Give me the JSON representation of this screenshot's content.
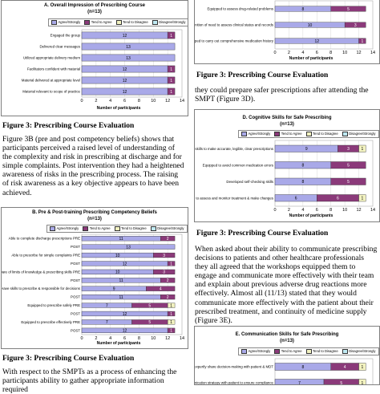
{
  "legend": {
    "labels": [
      "Agree/Strongly",
      "Tend to Agree",
      "Tend to Disagree",
      "Disagree/Strongly"
    ],
    "colors": [
      "#a9a9e8",
      "#8b3a7a",
      "#f2f2c0",
      "#bfe9f2"
    ]
  },
  "x_axis_title": "Number of participants",
  "chart_a": {
    "title": "A.  Overall Impression of Prescribing Course",
    "subtitle": "(n=13)",
    "rows": [
      {
        "label": "Engaged the group",
        "values": [
          12,
          1
        ]
      },
      {
        "label": "Delivered clear messages",
        "values": [
          13,
          0
        ]
      },
      {
        "label": "Utilized appropriate delivery medium",
        "values": [
          13,
          0
        ]
      },
      {
        "label": "Facilitators confident with material",
        "values": [
          12,
          1
        ]
      },
      {
        "label": "Material delivered at appropriate level",
        "values": [
          12,
          1
        ]
      },
      {
        "label": "Material relevant to scope of practice",
        "values": [
          12,
          1
        ]
      }
    ],
    "ticks": [
      0,
      2,
      4,
      6,
      8,
      10,
      12,
      14
    ]
  },
  "chart_b": {
    "title": "B.  Pre & Post-training Prescribing Competency Beliefs",
    "subtitle": "(n=13)",
    "rows": [
      {
        "label": "Able to complete discharge prescriptions  PRE",
        "values": [
          11,
          2
        ]
      },
      {
        "label": "POST",
        "values": [
          13,
          0
        ]
      },
      {
        "label": "Able to prescribe for simple complaints  PRE",
        "values": [
          10,
          3
        ]
      },
      {
        "label": "POST",
        "values": [
          12,
          1
        ]
      },
      {
        "label": "Aware of limits of knowledge & prescribing skills PRE",
        "values": [
          10,
          3
        ]
      },
      {
        "label": "POST",
        "values": [
          11,
          2
        ]
      },
      {
        "label": "Have skills to prescribe & responsible for decisions",
        "values": [
          9,
          4
        ]
      },
      {
        "label": "POST",
        "values": [
          11,
          2
        ]
      },
      {
        "label": "Equipped to prescribe safely  PRE",
        "values": [
          7,
          5,
          1
        ]
      },
      {
        "label": "POST",
        "values": [
          12,
          1
        ]
      },
      {
        "label": "Equipped to prescribe effectively  PRE",
        "values": [
          7,
          5,
          1
        ]
      },
      {
        "label": "POST",
        "values": [
          12,
          1
        ]
      }
    ],
    "ticks": [
      0,
      2,
      4,
      6,
      8,
      10,
      12,
      14
    ]
  },
  "chart_c_partial": {
    "rows": [
      {
        "label": "Equipped to assess drug-related problems",
        "values": [
          8,
          5
        ]
      },
      {
        "label": "Recognition of need to assess clinical status and records",
        "values": [
          10,
          3
        ]
      },
      {
        "label": "Equipped to carry out comprehensive medication history",
        "values": [
          12,
          1
        ]
      }
    ],
    "ticks": [
      0,
      2,
      4,
      6,
      8,
      10,
      12,
      14
    ]
  },
  "chart_d": {
    "title": "D.  Cognitive Skills for Safe Prescribing",
    "subtitle": "(n=13)",
    "rows": [
      {
        "label": "Equipped with skills to make accurate, legible, clear prescriptions",
        "values": [
          9,
          3,
          1
        ]
      },
      {
        "label": "Equipped to avoid common medication errors",
        "values": [
          8,
          5
        ]
      },
      {
        "label": "Developed self-checking skills",
        "values": [
          8,
          5
        ]
      },
      {
        "label": "Equipped to assess and monitor treatment & make changes",
        "values": [
          6,
          6,
          1
        ]
      }
    ],
    "ticks": [
      0,
      2,
      4,
      6,
      8,
      10,
      12,
      14
    ]
  },
  "chart_e": {
    "title": "E.  Communication Skills for Safe Prescribing",
    "subtitle": "(n=13)",
    "rows": [
      {
        "label": "Equipped to expertly share decision-making with patient & MDT",
        "values": [
          8,
          4,
          1
        ]
      },
      {
        "label": "Equipped to develop communication strategy with patient to ensure compliance",
        "values": [
          7,
          5,
          1
        ]
      }
    ]
  },
  "captions": {
    "fig3a": "Figure 3: Prescribing Course Evaluation",
    "fig3b": "Figure 3: Prescribing Course Evaluation",
    "fig3c": "Figure 3: Prescribing Course Evaluation",
    "fig3d": "Figure 3: Prescribing Course Evaluation"
  },
  "text": {
    "para1": "Figure 3B (pre and post competency beliefs) shows that participants perceived a raised level of understanding of the complexity and risk in prescribing at discharge and for simple complaints. Post intervention they had a heightened awareness of risks in the prescribing process. The raising of risk awareness as a key objective appears to have been achieved.",
    "para2": "they could prepare safer prescriptions after attending the SMPT (Figure 3D).",
    "para3": "When asked about their ability to communicate prescribing decisions to patients and other healthcare professionals they all agreed that the workshops equipped them to engage and communicate more effectively with their team and explain about previous adverse drug reactions more effectively. Almost all (11/13) stated that they would communicate more effectively with the patient about their prescribed treatment, and continuity of medicine supply (Figure 3E).",
    "para4": "With respect to the SMPTs as a process of enhancing the participants ability to gather appropriate information required"
  }
}
